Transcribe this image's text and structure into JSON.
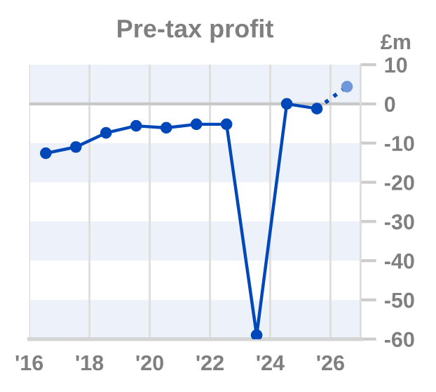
{
  "chart_data": {
    "type": "line",
    "title": "Pre-tax profit",
    "ylabel": "£m",
    "series": [
      {
        "color": "#0047ba",
        "x": [
          2016.55,
          2017.55,
          2018.55,
          2019.55,
          2020.55,
          2021.55,
          2022.55,
          2023.55,
          2024.55,
          2025.55
        ],
        "values": [
          -12.6,
          -11.0,
          -7.4,
          -5.6,
          -6.1,
          -5.2,
          -5.2,
          -59,
          0,
          -1.2
        ],
        "line_style": "solid"
      },
      {
        "color": "#0047ba",
        "x": [
          2025.55,
          2026.55
        ],
        "values": [
          -1.2,
          4.4
        ],
        "line_style": "dotted"
      }
    ],
    "marker": "circle",
    "xlim": [
      2016,
      2027
    ],
    "xticks": [
      {
        "value": 2016,
        "label": "'16"
      },
      {
        "value": 2018,
        "label": "'18"
      },
      {
        "value": 2020,
        "label": "'20"
      },
      {
        "value": 2022,
        "label": "'22"
      },
      {
        "value": 2024,
        "label": "'24"
      },
      {
        "value": 2026,
        "label": "'26"
      }
    ],
    "ylim": [
      -60,
      10
    ],
    "yticks": [
      10,
      0,
      -10,
      -20,
      -30,
      -40,
      -50,
      -60
    ],
    "grid": "x",
    "ref_lines": [
      {
        "axis": "y",
        "value": 0,
        "color": "#c8c8c8"
      }
    ],
    "bands": [
      {
        "axis": "y",
        "from": 0,
        "to": 10,
        "color": "#edf1f9"
      },
      {
        "axis": "y",
        "from": -20,
        "to": -10,
        "color": "#edf1f9"
      },
      {
        "axis": "y",
        "from": -40,
        "to": -30,
        "color": "#edf1f9"
      },
      {
        "axis": "y",
        "from": -60,
        "to": -50,
        "color": "#edf1f9"
      }
    ]
  }
}
